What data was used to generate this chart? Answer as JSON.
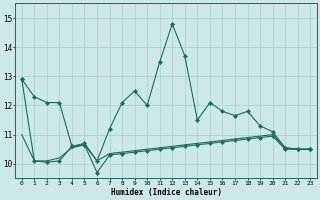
{
  "xlabel": "Humidex (Indice chaleur)",
  "background_color": "#cde8e8",
  "grid_color": "#aacfcf",
  "line_color": "#1a6b5a",
  "xlim": [
    -0.5,
    23.5
  ],
  "ylim": [
    9.5,
    15.5
  ],
  "yticks": [
    10,
    11,
    12,
    13,
    14,
    15
  ],
  "xticks": [
    0,
    1,
    2,
    3,
    4,
    5,
    6,
    7,
    8,
    9,
    10,
    11,
    12,
    13,
    14,
    15,
    16,
    17,
    18,
    19,
    20,
    21,
    22,
    23
  ],
  "line1_y": [
    12.9,
    12.3,
    12.1,
    12.1,
    10.6,
    10.7,
    10.1,
    11.2,
    12.1,
    12.5,
    12.0,
    13.5,
    14.8,
    13.7,
    11.5,
    12.1,
    11.8,
    11.65,
    11.8,
    11.3,
    11.1,
    10.55,
    10.5,
    10.5
  ],
  "line2_y": [
    12.9,
    10.1,
    10.05,
    10.1,
    10.6,
    10.65,
    9.7,
    10.3,
    10.35,
    10.4,
    10.45,
    10.5,
    10.55,
    10.6,
    10.65,
    10.7,
    10.75,
    10.8,
    10.85,
    10.9,
    10.95,
    10.5,
    10.5,
    10.5
  ],
  "line3_y": [
    11.0,
    10.1,
    10.1,
    10.2,
    10.55,
    10.65,
    10.1,
    10.35,
    10.4,
    10.45,
    10.5,
    10.55,
    10.6,
    10.65,
    10.7,
    10.75,
    10.8,
    10.85,
    10.9,
    10.95,
    11.0,
    10.55,
    10.5,
    10.5
  ]
}
